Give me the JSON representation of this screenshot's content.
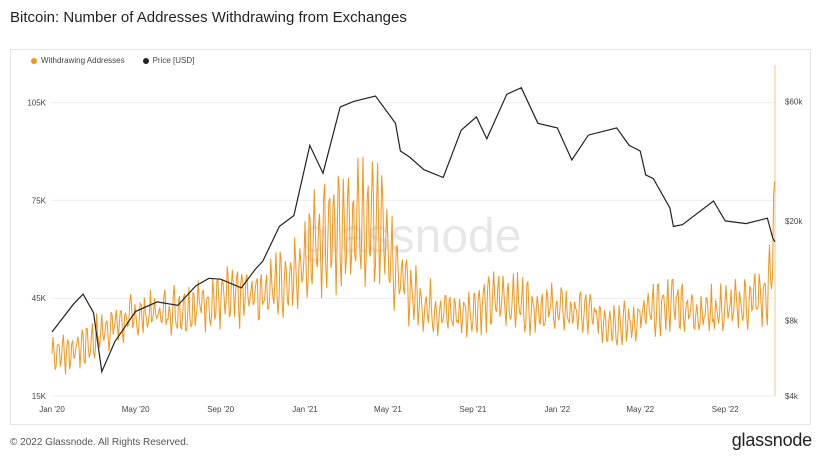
{
  "title": "Bitcoin: Number of Addresses Withdrawing from Exchanges",
  "footer": "© 2022 Glassnode. All Rights Reserved.",
  "logo": "glassnode",
  "watermark": "glassnode",
  "colors": {
    "withdrawing": "#f7931a",
    "price": "#222222",
    "grid": "#ececec"
  },
  "chart_data": {
    "type": "line",
    "title": "Bitcoin: Number of Addresses Withdrawing from Exchanges",
    "xlabel": "",
    "ylabel": "",
    "grid": true,
    "legend_position": "top-left",
    "x_ticks": [
      "Jan '20",
      "May '20",
      "Sep '20",
      "Jan '21",
      "May '21",
      "Sep '21",
      "Jan '22",
      "May '22",
      "Sep '22"
    ],
    "y_left": {
      "ticks": [
        15000,
        45000,
        75000,
        105000
      ],
      "tick_labels": [
        "15K",
        "45K",
        "75K",
        "105K"
      ],
      "range": [
        15000,
        115000
      ]
    },
    "y_right": {
      "scale": "log",
      "ticks": [
        4000,
        8000,
        20000,
        60000
      ],
      "tick_labels": [
        "$4k",
        "$8k",
        "$20k",
        "$60k"
      ],
      "range": [
        4000,
        80000
      ]
    },
    "series": [
      {
        "name": "Withdrawing Addresses",
        "axis": "left",
        "color": "#f7931a",
        "x": [
          "2020-01-01",
          "2020-02-01",
          "2020-03-01",
          "2020-03-20",
          "2020-04-15",
          "2020-05-15",
          "2020-06-15",
          "2020-07-15",
          "2020-08-15",
          "2020-09-15",
          "2020-10-15",
          "2020-11-15",
          "2020-12-15",
          "2021-01-10",
          "2021-02-01",
          "2021-03-01",
          "2021-04-01",
          "2021-04-20",
          "2021-05-15",
          "2021-06-15",
          "2021-07-15",
          "2021-08-15",
          "2021-09-15",
          "2021-10-15",
          "2021-11-15",
          "2021-12-15",
          "2022-01-15",
          "2022-02-15",
          "2022-03-15",
          "2022-04-15",
          "2022-05-10",
          "2022-06-01",
          "2022-06-20",
          "2022-07-15",
          "2022-08-15",
          "2022-09-15",
          "2022-10-15",
          "2022-11-01",
          "2022-11-08",
          "2022-11-12"
        ],
        "values": [
          28000,
          29000,
          32000,
          36000,
          38000,
          40000,
          41000,
          42000,
          44000,
          45000,
          46000,
          48000,
          52000,
          60000,
          64000,
          66000,
          68000,
          70000,
          52000,
          44000,
          41000,
          40000,
          43000,
          45000,
          43000,
          42000,
          41000,
          40000,
          38000,
          37000,
          40000,
          42000,
          44000,
          41000,
          41000,
          42000,
          45000,
          45000,
          56000,
          72000
        ]
      },
      {
        "name": "Price [USD]",
        "axis": "right",
        "color": "#222222",
        "x": [
          "2020-01-01",
          "2020-02-01",
          "2020-02-15",
          "2020-03-01",
          "2020-03-13",
          "2020-04-01",
          "2020-05-01",
          "2020-06-01",
          "2020-07-01",
          "2020-07-27",
          "2020-08-15",
          "2020-09-01",
          "2020-10-01",
          "2020-10-21",
          "2020-11-01",
          "2020-11-25",
          "2020-12-16",
          "2021-01-08",
          "2021-01-27",
          "2021-02-21",
          "2021-03-13",
          "2021-04-13",
          "2021-05-12",
          "2021-05-19",
          "2021-06-01",
          "2021-06-22",
          "2021-07-20",
          "2021-08-15",
          "2021-09-06",
          "2021-09-21",
          "2021-10-20",
          "2021-11-10",
          "2021-12-04",
          "2022-01-01",
          "2022-01-22",
          "2022-02-15",
          "2022-03-28",
          "2022-04-15",
          "2022-05-01",
          "2022-05-09",
          "2022-05-20",
          "2022-06-13",
          "2022-06-18",
          "2022-07-01",
          "2022-08-15",
          "2022-09-01",
          "2022-10-01",
          "2022-11-01",
          "2022-11-09",
          "2022-11-12"
        ],
        "values": [
          7200,
          9300,
          10200,
          8600,
          5000,
          6600,
          8700,
          9500,
          9200,
          11000,
          11800,
          11700,
          10800,
          12800,
          13800,
          19000,
          21000,
          40000,
          31000,
          57000,
          60000,
          63000,
          49000,
          38000,
          36000,
          32000,
          29800,
          46000,
          52000,
          42500,
          64000,
          68000,
          49000,
          47000,
          35000,
          44000,
          47000,
          40000,
          38000,
          30500,
          29500,
          22500,
          19000,
          19300,
          24000,
          20000,
          19500,
          20500,
          17000,
          16500
        ]
      }
    ]
  }
}
